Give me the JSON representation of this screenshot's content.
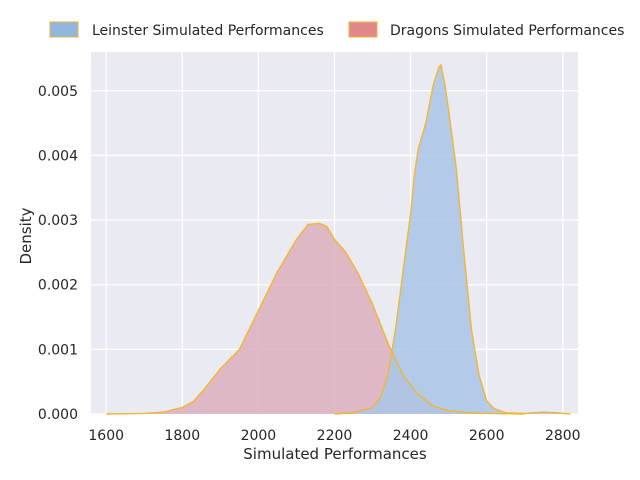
{
  "chart_data": {
    "type": "area",
    "xlabel": "Simulated Performances",
    "ylabel": "Density",
    "xlim": [
      1560,
      2840
    ],
    "ylim": [
      0,
      0.0056
    ],
    "x_ticks": [
      1600,
      1800,
      2000,
      2200,
      2400,
      2600,
      2800
    ],
    "x_tick_labels": [
      "1600",
      "1800",
      "2000",
      "2200",
      "2400",
      "2600",
      "2800"
    ],
    "y_ticks": [
      0,
      0.001,
      0.002,
      0.003,
      0.004,
      0.005
    ],
    "y_tick_labels": [
      "0.000",
      "0.001",
      "0.002",
      "0.003",
      "0.004",
      "0.005"
    ],
    "grid": true,
    "legend_position": "top",
    "colors": {
      "plot_background": "#eaeaf2",
      "grid": "#ffffff",
      "outline": "#f2b630"
    },
    "series": [
      {
        "name": "Leinster Simulated Performances",
        "color": "#8fb7df",
        "fill_color": "#a9c6e6",
        "x": [
          2200,
          2250,
          2300,
          2320,
          2340,
          2360,
          2380,
          2400,
          2410,
          2420,
          2440,
          2460,
          2475,
          2480,
          2490,
          2500,
          2520,
          2540,
          2560,
          2580,
          2600,
          2620,
          2650,
          2700,
          2750,
          2780,
          2820
        ],
        "y": [
          0,
          2e-05,
          0.0001,
          0.00025,
          0.0006,
          0.0013,
          0.0022,
          0.0031,
          0.0037,
          0.0041,
          0.0045,
          0.0051,
          0.00537,
          0.0054,
          0.0051,
          0.0047,
          0.0038,
          0.0025,
          0.0013,
          0.0006,
          0.0002,
          8e-05,
          2e-05,
          1e-05,
          3e-05,
          2e-05,
          0
        ]
      },
      {
        "name": "Dragons Simulated Performances",
        "color": "#e0888a",
        "fill_color": "#dcb0bd",
        "x": [
          1600,
          1700,
          1750,
          1800,
          1830,
          1860,
          1900,
          1950,
          2000,
          2050,
          2100,
          2130,
          2160,
          2180,
          2200,
          2230,
          2260,
          2300,
          2340,
          2380,
          2420,
          2460,
          2500,
          2550,
          2600,
          2650,
          2700
        ],
        "y": [
          0,
          1e-05,
          3e-05,
          0.0001,
          0.0002,
          0.0004,
          0.0007,
          0.001,
          0.0016,
          0.0022,
          0.0027,
          0.00293,
          0.00295,
          0.0029,
          0.0027,
          0.0025,
          0.0022,
          0.0017,
          0.0011,
          0.0006,
          0.0003,
          0.00012,
          5e-05,
          2e-05,
          1e-05,
          5e-06,
          0
        ]
      }
    ]
  }
}
